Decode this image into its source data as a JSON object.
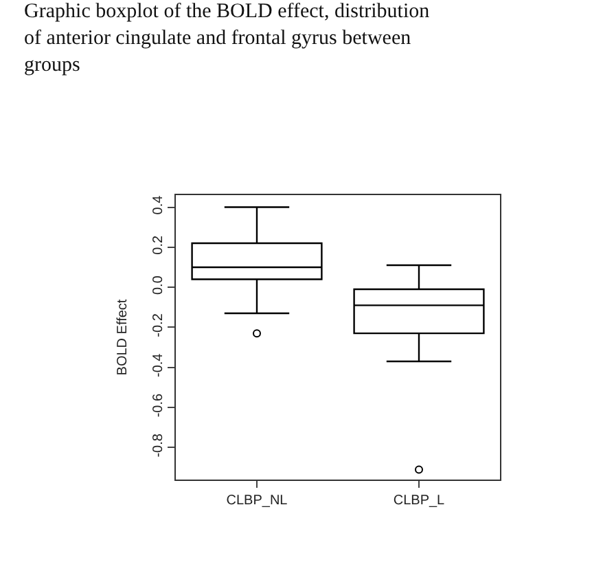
{
  "chart_data": {
    "type": "box",
    "title": "Graphic boxplot of the BOLD effect, distribution of anterior cingulate and frontal gyrus between groups",
    "ylabel": "BOLD Effect",
    "categories": [
      "CLBP_NL",
      "CLBP_L"
    ],
    "boxes": [
      {
        "low": -0.13,
        "q1": 0.04,
        "median": 0.1,
        "q3": 0.22,
        "high": 0.4,
        "outliers": [
          -0.23
        ]
      },
      {
        "low": -0.37,
        "q1": -0.23,
        "median": -0.09,
        "q3": -0.01,
        "high": 0.11,
        "outliers": [
          -0.91
        ]
      }
    ],
    "color": "#000000",
    "ylim": [
      -0.96,
      0.46
    ],
    "yticks": [
      {
        "value": -0.8,
        "label": "-0.8"
      },
      {
        "value": -0.6,
        "label": "-0.6"
      },
      {
        "value": -0.4,
        "label": "-0.4"
      },
      {
        "value": -0.2,
        "label": "-0.2"
      },
      {
        "value": 0,
        "label": "0.0"
      },
      {
        "value": 0.2,
        "label": "0.2"
      },
      {
        "value": 0.4,
        "label": "0.4"
      }
    ]
  }
}
